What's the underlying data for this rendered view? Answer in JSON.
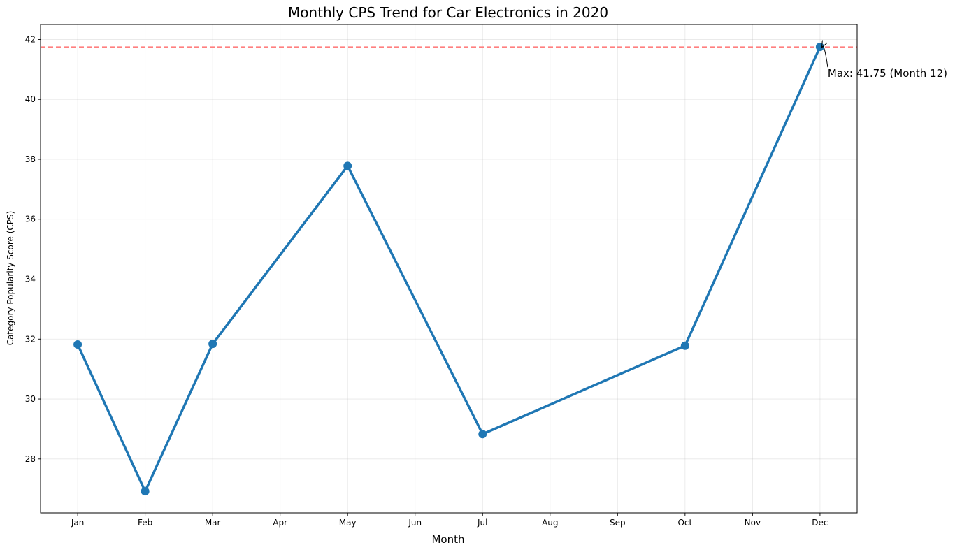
{
  "chart_data": {
    "type": "line",
    "title": "Monthly CPS Trend for Car Electronics in 2020",
    "xlabel": "Month",
    "ylabel": "Category Popularity Score (CPS)",
    "categories": [
      "Jan",
      "Feb",
      "Mar",
      "Apr",
      "May",
      "Jun",
      "Jul",
      "Aug",
      "Sep",
      "Oct",
      "Nov",
      "Dec"
    ],
    "points": [
      {
        "month": 1,
        "value": 31.82
      },
      {
        "month": 2,
        "value": 26.92
      },
      {
        "month": 3,
        "value": 31.84
      },
      {
        "month": 5,
        "value": 37.78
      },
      {
        "month": 7,
        "value": 28.83
      },
      {
        "month": 10,
        "value": 31.78
      },
      {
        "month": 12,
        "value": 41.75
      }
    ],
    "xlim": [
      0.45,
      12.55
    ],
    "ylim": [
      26.2,
      42.5
    ],
    "yticks": [
      28,
      30,
      32,
      34,
      36,
      38,
      40,
      42
    ],
    "grid": true,
    "max_line": {
      "value": 41.75,
      "color": "#ff7f7f",
      "style": "dashed"
    },
    "annotation": {
      "text": "Max: 41.75 (Month 12)",
      "month": 12,
      "value": 41.75
    },
    "colors": {
      "line": "#1f77b4",
      "marker": "#1f77b4",
      "max_line": "#ff7f7f"
    }
  }
}
